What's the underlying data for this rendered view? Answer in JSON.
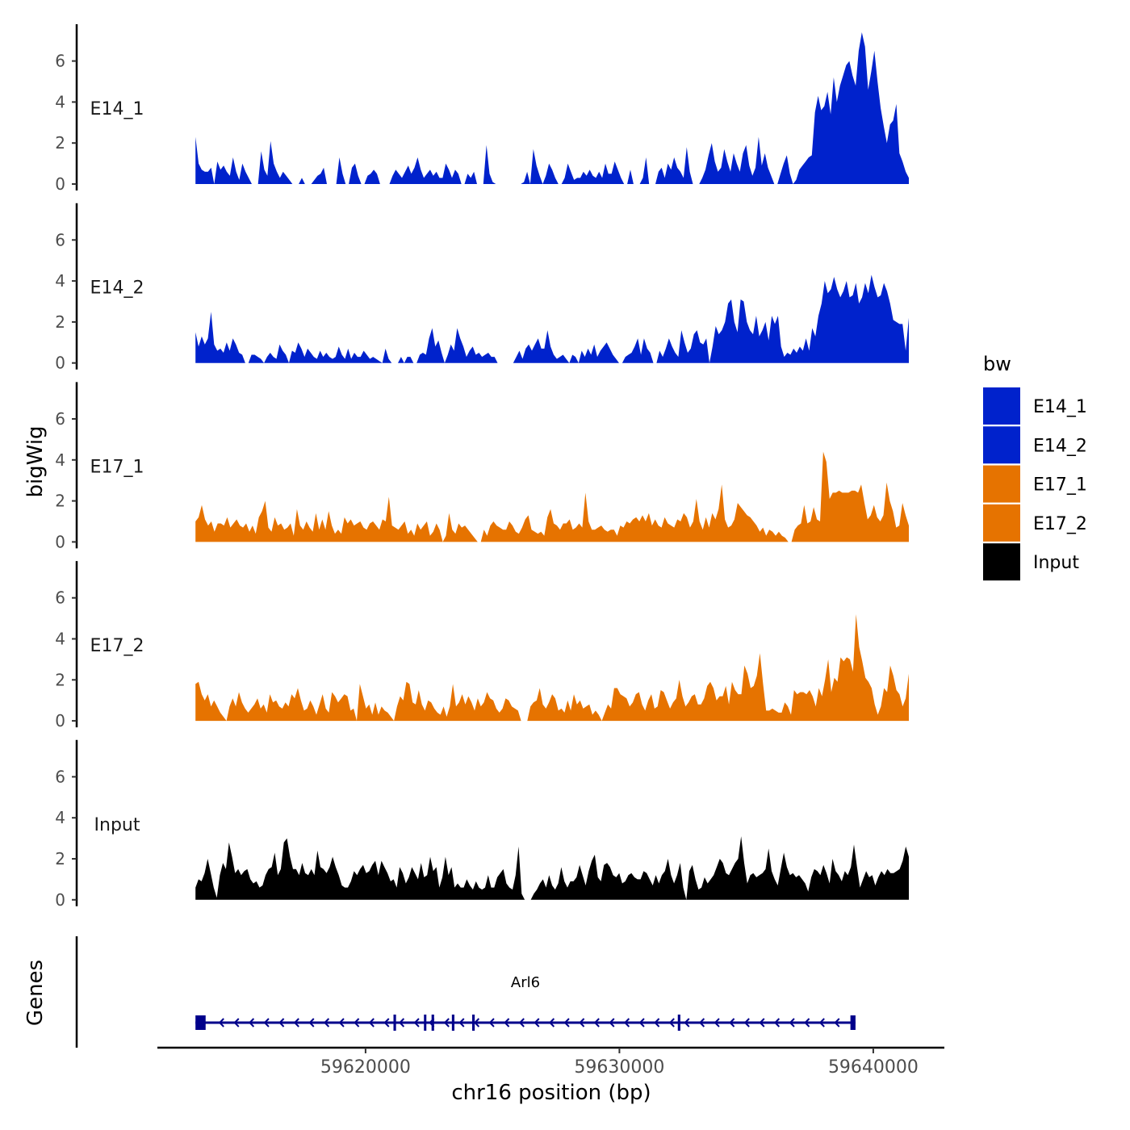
{
  "chart_data": {
    "type": "area",
    "ylabel": "bigWig",
    "xlabel": "chr16 position (bp)",
    "xlim": [
      59611800,
      59642800
    ],
    "ylim": [
      0,
      7.8
    ],
    "yticks": [
      "0",
      "2",
      "4",
      "6"
    ],
    "ytick_values": [
      0,
      2,
      4,
      6
    ],
    "xticks": [
      "59620000",
      "59630000",
      "59640000"
    ],
    "xtick_values": [
      59620000,
      59630000,
      59640000
    ],
    "x_start": 59613300,
    "x_end": 59641400,
    "legend": {
      "title": "bw",
      "position": "right",
      "entries": [
        {
          "label": "E14_1",
          "color": "#0022CC"
        },
        {
          "label": "E14_2",
          "color": "#0022CC"
        },
        {
          "label": "E17_1",
          "color": "#E67300"
        },
        {
          "label": "E17_2",
          "color": "#E67300"
        },
        {
          "label": "Input",
          "color": "#000000"
        }
      ]
    },
    "series": [
      {
        "name": "E14_1",
        "color": "#0022CC",
        "values": [
          2.3,
          1.0,
          0.7,
          0.6,
          0.6,
          0.8,
          0.0,
          1.1,
          0.7,
          0.9,
          0.6,
          0.4,
          1.3,
          0.6,
          0.2,
          1.0,
          0.6,
          0.3,
          0.0,
          0.0,
          0.0,
          1.6,
          0.7,
          0.4,
          2.1,
          1.0,
          0.6,
          0.3,
          0.6,
          0.4,
          0.2,
          0.0,
          0.0,
          0.0,
          0.3,
          0.0,
          0.0,
          0.0,
          0.2,
          0.4,
          0.5,
          0.8,
          0.0,
          0.0,
          0.0,
          0.0,
          1.3,
          0.5,
          0.0,
          0.0,
          0.8,
          1.0,
          0.4,
          0.0,
          0.0,
          0.4,
          0.5,
          0.7,
          0.5,
          0.0,
          0.0,
          0.0,
          0.0,
          0.4,
          0.7,
          0.5,
          0.3,
          0.6,
          0.9,
          0.5,
          0.8,
          1.3,
          0.7,
          0.3,
          0.5,
          0.7,
          0.4,
          0.6,
          0.3,
          0.3,
          1.0,
          0.7,
          0.3,
          0.7,
          0.5,
          0.0,
          0.0,
          0.5,
          0.3,
          0.6,
          0.0,
          0.0,
          0.0,
          1.9,
          0.5,
          0.1,
          0.0,
          0.0,
          0.0,
          0.0,
          0.0,
          0.0,
          0.0,
          0.0,
          0.0,
          0.1,
          0.6,
          0.0,
          1.7,
          0.9,
          0.4,
          0.0,
          0.4,
          1.0,
          0.7,
          0.3,
          0.0,
          0.0,
          0.3,
          1.0,
          0.6,
          0.2,
          0.3,
          0.3,
          0.6,
          0.4,
          0.7,
          0.4,
          0.3,
          0.6,
          0.3,
          1.0,
          0.5,
          0.5,
          1.1,
          0.7,
          0.3,
          0.0,
          0.0,
          0.7,
          0.0,
          0.0,
          0.0,
          0.3,
          1.3,
          0.0,
          0.0,
          0.0,
          0.6,
          0.8,
          0.3,
          1.0,
          0.7,
          1.3,
          0.8,
          0.6,
          0.3,
          1.8,
          0.6,
          0.0,
          0.0,
          0.0,
          0.3,
          0.7,
          1.4,
          2.0,
          1.1,
          0.6,
          0.8,
          1.7,
          1.1,
          0.6,
          1.5,
          1.0,
          0.6,
          1.5,
          1.9,
          0.9,
          0.4,
          0.8,
          2.3,
          0.9,
          1.5,
          0.8,
          0.4,
          0.0,
          0.0,
          0.5,
          1.0,
          1.4,
          0.5,
          0.0,
          0.2,
          0.7,
          0.9,
          1.1,
          1.3,
          1.4,
          3.5,
          4.3,
          3.6,
          3.8,
          4.5,
          3.4,
          5.2,
          4.0,
          4.8,
          5.3,
          5.8,
          6.0,
          5.3,
          4.8,
          6.5,
          7.4,
          6.7,
          4.6,
          5.5,
          6.5,
          5.0,
          3.7,
          2.8,
          2.0,
          2.9,
          3.1,
          3.9,
          1.5,
          1.1,
          0.6,
          0.3
        ]
      },
      {
        "name": "E14_2",
        "color": "#0022CC",
        "values": [
          1.5,
          0.8,
          1.3,
          0.9,
          1.2,
          2.5,
          0.9,
          0.6,
          0.7,
          0.5,
          1.0,
          0.6,
          1.2,
          0.9,
          0.5,
          0.4,
          0.0,
          0.0,
          0.4,
          0.4,
          0.3,
          0.2,
          0.0,
          0.3,
          0.5,
          0.3,
          0.2,
          0.9,
          0.6,
          0.4,
          0.0,
          0.6,
          0.5,
          1.0,
          0.7,
          0.3,
          0.7,
          0.5,
          0.3,
          0.2,
          0.6,
          0.3,
          0.5,
          0.3,
          0.2,
          0.3,
          0.8,
          0.4,
          0.2,
          0.7,
          0.2,
          0.5,
          0.3,
          0.3,
          0.6,
          0.4,
          0.2,
          0.3,
          0.2,
          0.1,
          0.0,
          0.7,
          0.2,
          0.0,
          0.0,
          0.0,
          0.3,
          0.0,
          0.3,
          0.3,
          0.0,
          0.0,
          0.4,
          0.5,
          0.4,
          1.2,
          1.7,
          0.8,
          1.1,
          0.5,
          0.0,
          0.4,
          0.9,
          0.6,
          1.7,
          1.2,
          0.8,
          0.3,
          0.6,
          0.8,
          0.4,
          0.5,
          0.3,
          0.4,
          0.5,
          0.3,
          0.3,
          0.0,
          0.0,
          0.0,
          0.0,
          0.0,
          0.0,
          0.3,
          0.6,
          0.2,
          0.7,
          0.9,
          0.6,
          0.9,
          1.2,
          0.7,
          0.7,
          1.6,
          0.8,
          0.4,
          0.2,
          0.3,
          0.4,
          0.2,
          0.0,
          0.4,
          0.3,
          0.0,
          0.6,
          0.3,
          0.7,
          0.4,
          0.9,
          0.3,
          0.6,
          0.8,
          1.0,
          0.7,
          0.4,
          0.2,
          0.0,
          0.0,
          0.3,
          0.4,
          0.5,
          0.8,
          1.2,
          0.4,
          1.2,
          0.7,
          0.5,
          0.0,
          0.0,
          0.6,
          0.3,
          0.7,
          1.2,
          0.8,
          0.5,
          0.3,
          1.6,
          1.0,
          0.5,
          0.7,
          1.4,
          1.6,
          1.0,
          0.9,
          1.2,
          0.0,
          0.8,
          1.8,
          1.4,
          1.6,
          2.0,
          2.9,
          3.1,
          2.0,
          1.5,
          3.1,
          3.0,
          2.0,
          1.6,
          1.4,
          2.3,
          1.3,
          1.6,
          2.0,
          1.1,
          2.3,
          1.9,
          2.3,
          0.8,
          0.3,
          0.5,
          0.4,
          0.7,
          0.5,
          0.8,
          0.6,
          1.2,
          0.6,
          1.7,
          1.3,
          2.3,
          2.9,
          4.0,
          3.4,
          3.6,
          4.2,
          3.6,
          3.2,
          3.5,
          4.0,
          3.2,
          3.3,
          3.9,
          2.9,
          3.2,
          3.9,
          3.4,
          4.3,
          3.7,
          3.2,
          3.3,
          3.9,
          3.5,
          2.9,
          2.1,
          2.0,
          1.9,
          1.9,
          0.6,
          2.2
        ]
      },
      {
        "name": "E17_1",
        "color": "#E67300",
        "values": [
          1.0,
          1.2,
          1.8,
          1.1,
          0.8,
          1.0,
          0.5,
          0.9,
          0.9,
          0.8,
          1.2,
          0.7,
          0.9,
          1.1,
          0.8,
          0.7,
          0.9,
          0.5,
          0.8,
          0.4,
          1.2,
          1.5,
          2.0,
          0.7,
          0.5,
          1.2,
          0.8,
          0.9,
          0.6,
          0.7,
          0.9,
          0.3,
          1.6,
          0.8,
          0.6,
          1.0,
          0.7,
          0.5,
          1.4,
          0.6,
          1.1,
          0.6,
          1.5,
          0.8,
          0.4,
          0.6,
          0.4,
          1.2,
          0.9,
          1.1,
          0.8,
          0.9,
          1.0,
          0.7,
          0.6,
          0.9,
          1.0,
          0.8,
          0.6,
          1.1,
          1.0,
          2.2,
          0.8,
          0.7,
          0.6,
          0.8,
          1.0,
          0.4,
          0.6,
          0.3,
          0.9,
          0.6,
          0.8,
          1.0,
          0.3,
          0.5,
          0.9,
          0.6,
          0.0,
          0.3,
          1.4,
          0.6,
          0.4,
          0.9,
          0.7,
          0.8,
          0.6,
          0.4,
          0.2,
          0.0,
          0.0,
          0.6,
          0.3,
          0.8,
          1.0,
          0.8,
          0.7,
          0.6,
          0.6,
          1.0,
          0.8,
          0.5,
          0.4,
          0.7,
          1.1,
          1.3,
          0.6,
          0.5,
          0.4,
          0.5,
          0.3,
          1.2,
          1.6,
          0.9,
          0.8,
          0.6,
          0.9,
          0.9,
          1.1,
          0.6,
          0.7,
          0.9,
          0.7,
          2.4,
          1.0,
          0.6,
          0.6,
          0.7,
          0.8,
          0.6,
          0.5,
          0.6,
          0.6,
          0.3,
          0.8,
          0.7,
          1.0,
          0.9,
          1.1,
          1.2,
          1.0,
          1.3,
          1.0,
          1.4,
          0.8,
          1.1,
          0.8,
          0.7,
          1.2,
          0.9,
          0.8,
          0.7,
          1.1,
          1.0,
          1.4,
          1.2,
          0.7,
          1.0,
          2.1,
          1.0,
          0.6,
          1.2,
          0.7,
          1.4,
          1.1,
          1.6,
          2.8,
          1.1,
          0.7,
          0.8,
          1.1,
          1.9,
          1.7,
          1.5,
          1.3,
          1.2,
          1.0,
          0.8,
          0.5,
          0.7,
          0.3,
          0.6,
          0.5,
          0.3,
          0.5,
          0.3,
          0.2,
          0.0,
          0.0,
          0.6,
          0.8,
          0.9,
          1.8,
          0.9,
          1.0,
          1.7,
          1.1,
          1.0,
          4.4,
          3.9,
          2.1,
          2.4,
          2.4,
          2.5,
          2.4,
          2.4,
          2.4,
          2.5,
          2.5,
          2.4,
          2.8,
          1.9,
          1.1,
          1.3,
          1.8,
          1.2,
          1.0,
          1.3,
          2.9,
          2.0,
          1.5,
          0.7,
          0.8,
          1.9,
          1.3,
          0.8
        ]
      },
      {
        "name": "E17_2",
        "color": "#E67300",
        "values": [
          1.8,
          1.9,
          1.3,
          1.0,
          1.3,
          0.7,
          1.0,
          0.7,
          0.4,
          0.2,
          0.0,
          0.7,
          1.1,
          0.7,
          1.4,
          0.9,
          0.6,
          0.4,
          0.6,
          0.8,
          1.1,
          0.6,
          0.8,
          0.4,
          1.3,
          0.9,
          1.0,
          0.7,
          0.6,
          0.9,
          0.7,
          1.3,
          1.1,
          1.6,
          1.0,
          0.5,
          0.6,
          1.0,
          0.7,
          0.3,
          0.8,
          1.3,
          0.6,
          0.4,
          1.4,
          1.2,
          0.9,
          1.1,
          1.3,
          1.2,
          0.5,
          0.6,
          0.0,
          1.8,
          1.2,
          0.6,
          0.8,
          0.3,
          0.9,
          0.3,
          0.7,
          0.5,
          0.4,
          0.2,
          0.0,
          0.7,
          1.2,
          1.0,
          1.9,
          1.8,
          0.9,
          0.8,
          1.5,
          0.8,
          0.5,
          1.0,
          0.9,
          0.6,
          0.4,
          0.3,
          0.7,
          0.2,
          0.7,
          1.8,
          0.7,
          0.9,
          1.3,
          0.8,
          1.2,
          0.9,
          0.5,
          1.1,
          0.7,
          0.9,
          1.4,
          1.1,
          1.0,
          0.6,
          0.4,
          0.6,
          1.1,
          1.0,
          0.7,
          0.6,
          0.5,
          0.0,
          0.0,
          0.0,
          0.7,
          0.9,
          1.0,
          1.6,
          0.8,
          0.6,
          0.9,
          1.3,
          1.1,
          0.5,
          0.6,
          0.4,
          1.0,
          0.5,
          1.3,
          0.8,
          1.0,
          0.6,
          0.7,
          0.8,
          0.3,
          0.5,
          0.3,
          0.0,
          0.4,
          0.8,
          0.6,
          1.6,
          1.6,
          1.3,
          1.2,
          1.1,
          0.7,
          0.9,
          1.3,
          1.4,
          0.8,
          0.5,
          1.0,
          1.3,
          0.6,
          0.7,
          1.5,
          1.4,
          1.0,
          0.6,
          0.9,
          1.1,
          2.0,
          1.2,
          0.7,
          0.9,
          1.2,
          1.3,
          0.8,
          0.8,
          1.1,
          1.7,
          1.9,
          1.6,
          1.0,
          1.2,
          1.2,
          1.7,
          0.8,
          1.9,
          1.5,
          1.3,
          1.3,
          2.7,
          2.3,
          1.6,
          1.7,
          2.2,
          3.3,
          1.8,
          0.5,
          0.5,
          0.6,
          0.5,
          0.4,
          0.4,
          0.9,
          0.7,
          0.3,
          1.5,
          1.3,
          1.4,
          1.4,
          1.3,
          1.5,
          1.2,
          0.7,
          1.6,
          1.2,
          2.0,
          3.0,
          1.4,
          2.1,
          1.9,
          3.1,
          2.9,
          3.1,
          3.0,
          2.4,
          5.2,
          3.6,
          2.9,
          2.1,
          1.9,
          1.6,
          0.8,
          0.3,
          0.7,
          1.6,
          1.4,
          2.7,
          2.2,
          1.5,
          1.3,
          0.7,
          1.1,
          2.3
        ]
      },
      {
        "name": "Input",
        "color": "#000000",
        "values": [
          0.6,
          1.0,
          0.9,
          1.3,
          2.0,
          1.3,
          0.6,
          0.1,
          1.2,
          1.8,
          1.5,
          2.8,
          2.1,
          1.3,
          1.5,
          1.2,
          1.4,
          1.5,
          1.0,
          0.8,
          0.9,
          0.6,
          0.7,
          1.2,
          1.5,
          1.6,
          2.3,
          1.2,
          1.5,
          2.8,
          3.0,
          2.1,
          1.5,
          1.5,
          1.2,
          1.8,
          1.3,
          1.2,
          1.5,
          1.2,
          2.4,
          1.6,
          1.5,
          1.3,
          1.6,
          2.1,
          1.6,
          1.2,
          0.7,
          0.6,
          0.6,
          0.9,
          1.4,
          1.2,
          1.5,
          1.7,
          1.3,
          1.4,
          1.7,
          1.9,
          1.2,
          1.9,
          1.6,
          1.3,
          0.9,
          1.0,
          0.6,
          1.6,
          1.3,
          0.8,
          1.1,
          1.6,
          1.3,
          1.0,
          1.8,
          1.1,
          1.2,
          2.1,
          1.4,
          1.6,
          0.6,
          1.1,
          2.1,
          1.2,
          1.6,
          0.6,
          0.8,
          0.6,
          0.6,
          1.0,
          0.7,
          0.5,
          0.9,
          0.6,
          0.5,
          0.6,
          1.2,
          0.6,
          0.6,
          1.1,
          1.3,
          1.5,
          0.8,
          0.6,
          0.5,
          1.2,
          2.6,
          0.3,
          0.0,
          0.0,
          0.0,
          0.3,
          0.5,
          0.8,
          1.0,
          0.6,
          1.2,
          0.7,
          0.5,
          0.8,
          1.6,
          0.9,
          0.6,
          0.9,
          0.9,
          1.1,
          1.7,
          1.2,
          0.7,
          1.4,
          1.9,
          2.2,
          1.1,
          0.9,
          1.7,
          1.8,
          1.6,
          1.2,
          1.1,
          1.3,
          0.8,
          0.9,
          1.2,
          1.3,
          1.1,
          1.0,
          1.0,
          1.4,
          1.3,
          1.0,
          0.7,
          1.2,
          0.8,
          1.2,
          1.4,
          2.0,
          1.2,
          0.8,
          1.2,
          1.8,
          0.6,
          0.0,
          1.4,
          1.7,
          1.0,
          0.5,
          0.6,
          1.1,
          0.8,
          1.0,
          1.2,
          1.6,
          2.0,
          1.8,
          1.3,
          1.2,
          1.5,
          1.8,
          2.0,
          3.1,
          1.8,
          0.8,
          1.2,
          1.3,
          1.1,
          1.2,
          1.3,
          1.5,
          2.5,
          1.4,
          1.0,
          0.7,
          1.5,
          2.3,
          1.6,
          1.2,
          1.3,
          1.1,
          1.2,
          1.0,
          0.8,
          0.4,
          1.1,
          1.5,
          1.4,
          1.2,
          1.7,
          1.3,
          0.8,
          2.0,
          1.4,
          1.2,
          0.9,
          1.4,
          1.2,
          1.6,
          2.7,
          1.6,
          0.6,
          1.0,
          1.4,
          1.1,
          1.2,
          0.7,
          1.1,
          1.4,
          1.2,
          1.5,
          1.3,
          1.3,
          1.4,
          1.5,
          1.9,
          2.6,
          2.1
        ]
      }
    ],
    "genes": {
      "panel_label": "Genes",
      "name": "Arl6",
      "strand": "-",
      "start": 59613300,
      "end": 59639300,
      "exons": [
        [
          59613300,
          59613700
        ],
        [
          59621100,
          59621200
        ],
        [
          59622300,
          59622350
        ],
        [
          59622600,
          59622700
        ],
        [
          59623400,
          59623500
        ],
        [
          59624200,
          59624300
        ],
        [
          59632300,
          59632400
        ],
        [
          59639100,
          59639300
        ]
      ]
    }
  }
}
